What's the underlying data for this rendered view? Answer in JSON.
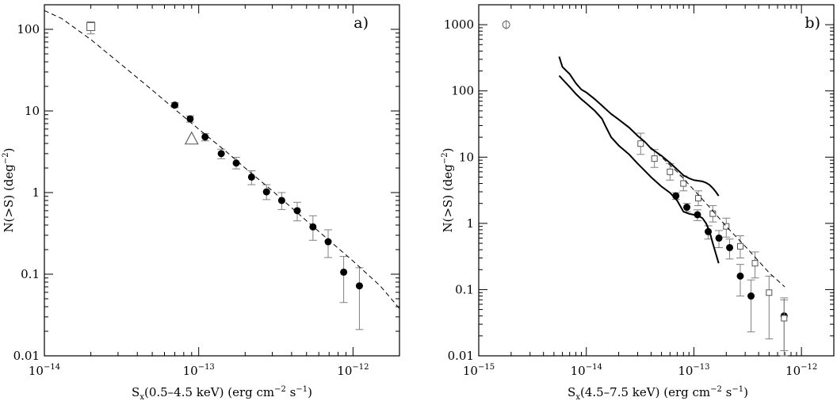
{
  "chart_data": [
    {
      "type": "scatter",
      "panel_label": "a)",
      "xscale": "log",
      "yscale": "log",
      "xlim": [
        1e-14,
        2e-12
      ],
      "ylim": [
        0.01,
        200
      ],
      "xlabel": {
        "main": "S",
        "sub": "x",
        "rest": "(0.5–4.5 keV) (erg cm",
        "e1": "−2",
        "mid": " s",
        "e2": "−1",
        "close": ")"
      },
      "ylabel": {
        "main": "N(>S) (deg",
        "sup": "−2",
        "close": ")"
      },
      "x_ticks": [
        {
          "value": 1e-14,
          "base": "10",
          "exp": "−14"
        },
        {
          "value": 1e-13,
          "base": "10",
          "exp": "−13"
        },
        {
          "value": 1e-12,
          "base": "10",
          "exp": "−12"
        }
      ],
      "y_ticks": [
        {
          "value": 0.01,
          "label": "0.01"
        },
        {
          "value": 0.1,
          "label": "0.1"
        },
        {
          "value": 1,
          "label": "1"
        },
        {
          "value": 10,
          "label": "10"
        },
        {
          "value": 100,
          "label": "100"
        }
      ],
      "series": [
        {
          "marker": "filled-circle",
          "points": [
            {
              "x": 7e-14,
              "y": 11.8,
              "lo": 11.0,
              "hi": 12.6
            },
            {
              "x": 8.8e-14,
              "y": 8.0,
              "lo": 7.3,
              "hi": 8.7
            },
            {
              "x": 1.1e-13,
              "y": 4.8,
              "lo": 4.3,
              "hi": 5.3
            },
            {
              "x": 1.4e-13,
              "y": 3.0,
              "lo": 2.6,
              "hi": 3.4
            },
            {
              "x": 1.75e-13,
              "y": 2.3,
              "lo": 1.95,
              "hi": 2.7
            },
            {
              "x": 2.2e-13,
              "y": 1.55,
              "lo": 1.25,
              "hi": 1.85
            },
            {
              "x": 2.75e-13,
              "y": 1.02,
              "lo": 0.82,
              "hi": 1.25
            },
            {
              "x": 3.45e-13,
              "y": 0.8,
              "lo": 0.62,
              "hi": 1.0
            },
            {
              "x": 4.35e-13,
              "y": 0.6,
              "lo": 0.45,
              "hi": 0.76
            },
            {
              "x": 5.5e-13,
              "y": 0.38,
              "lo": 0.26,
              "hi": 0.52
            },
            {
              "x": 6.9e-13,
              "y": 0.25,
              "lo": 0.16,
              "hi": 0.35
            },
            {
              "x": 8.7e-13,
              "y": 0.106,
              "lo": 0.045,
              "hi": 0.165
            },
            {
              "x": 1.1e-12,
              "y": 0.072,
              "lo": 0.021,
              "hi": 0.12
            }
          ]
        },
        {
          "marker": "open-square",
          "points": [
            {
              "x": 2e-14,
              "y": 108,
              "lo": 88,
              "hi": 124
            }
          ]
        },
        {
          "marker": "open-triangle",
          "points": [
            {
              "x": 9e-14,
              "y": 4.6
            }
          ]
        },
        {
          "line": "dashed",
          "points": [
            {
              "x": 1e-14,
              "y": 170
            },
            {
              "x": 1.3e-14,
              "y": 135
            },
            {
              "x": 2e-14,
              "y": 75
            },
            {
              "x": 3e-14,
              "y": 40
            },
            {
              "x": 5e-14,
              "y": 18
            },
            {
              "x": 7e-14,
              "y": 10.5
            },
            {
              "x": 1e-13,
              "y": 6
            },
            {
              "x": 1.5e-13,
              "y": 3.2
            },
            {
              "x": 2e-13,
              "y": 2.0
            },
            {
              "x": 3e-13,
              "y": 1.05
            },
            {
              "x": 5e-13,
              "y": 0.45
            },
            {
              "x": 7e-13,
              "y": 0.26
            },
            {
              "x": 1e-12,
              "y": 0.145
            },
            {
              "x": 1.5e-12,
              "y": 0.072
            },
            {
              "x": 2e-12,
              "y": 0.038
            }
          ]
        }
      ]
    },
    {
      "type": "scatter",
      "panel_label": "b)",
      "xscale": "log",
      "yscale": "log",
      "xlim": [
        1e-15,
        2e-12
      ],
      "ylim": [
        0.01,
        2000
      ],
      "xlabel": {
        "main": "S",
        "sub": "x",
        "rest": "(4.5–7.5 keV) (erg cm",
        "e1": "−2",
        "mid": " s",
        "e2": "−1",
        "close": ")"
      },
      "ylabel": {
        "main": "N(>S) (deg",
        "sup": "−2",
        "close": ")"
      },
      "x_ticks": [
        {
          "value": 1e-15,
          "base": "10",
          "exp": "−15"
        },
        {
          "value": 1e-14,
          "base": "10",
          "exp": "−14"
        },
        {
          "value": 1e-13,
          "base": "10",
          "exp": "−13"
        },
        {
          "value": 1e-12,
          "base": "10",
          "exp": "−12"
        }
      ],
      "y_ticks": [
        {
          "value": 0.01,
          "label": "0.01"
        },
        {
          "value": 0.1,
          "label": "0.1"
        },
        {
          "value": 1,
          "label": "1"
        },
        {
          "value": 10,
          "label": "10"
        },
        {
          "value": 100,
          "label": "100"
        },
        {
          "value": 1000,
          "label": "1000"
        }
      ],
      "series": [
        {
          "marker": "filled-circle",
          "points": [
            {
              "x": 6.8e-14,
              "y": 2.6,
              "lo": 2.3,
              "hi": 2.9
            },
            {
              "x": 8.6e-14,
              "y": 1.75,
              "lo": 1.5,
              "hi": 2.0
            },
            {
              "x": 1.08e-13,
              "y": 1.35,
              "lo": 1.1,
              "hi": 1.6
            },
            {
              "x": 1.36e-13,
              "y": 0.75,
              "lo": 0.58,
              "hi": 0.92
            },
            {
              "x": 1.71e-13,
              "y": 0.6,
              "lo": 0.43,
              "hi": 0.78
            },
            {
              "x": 2.15e-13,
              "y": 0.43,
              "lo": 0.29,
              "hi": 0.58
            },
            {
              "x": 2.7e-13,
              "y": 0.16,
              "lo": 0.08,
              "hi": 0.24
            },
            {
              "x": 3.4e-13,
              "y": 0.08,
              "lo": 0.023,
              "hi": 0.14
            },
            {
              "x": 6.9e-13,
              "y": 0.04,
              "lo": 0.01,
              "hi": 0.075
            }
          ]
        },
        {
          "marker": "open-square",
          "points": [
            {
              "x": 3.2e-14,
              "y": 16,
              "lo": 11,
              "hi": 23
            },
            {
              "x": 4.3e-14,
              "y": 9.5,
              "lo": 7,
              "hi": 13
            },
            {
              "x": 6e-14,
              "y": 6,
              "lo": 4.5,
              "hi": 8
            },
            {
              "x": 8e-14,
              "y": 4,
              "lo": 3.1,
              "hi": 5.2
            },
            {
              "x": 1.1e-13,
              "y": 2.4,
              "lo": 1.85,
              "hi": 3.1
            },
            {
              "x": 1.5e-13,
              "y": 1.4,
              "lo": 1.05,
              "hi": 1.85
            },
            {
              "x": 2e-13,
              "y": 0.9,
              "lo": 0.62,
              "hi": 1.2
            },
            {
              "x": 2.7e-13,
              "y": 0.45,
              "lo": 0.3,
              "hi": 0.65
            },
            {
              "x": 3.7e-13,
              "y": 0.25,
              "lo": 0.15,
              "hi": 0.37
            },
            {
              "x": 5e-13,
              "y": 0.09,
              "lo": 0.018,
              "hi": 0.16
            },
            {
              "x": 6.9e-13,
              "y": 0.037,
              "lo": 0.012,
              "hi": 0.07
            }
          ]
        },
        {
          "marker": "open-circle",
          "points": [
            {
              "x": 1.8e-15,
              "y": 1000
            }
          ]
        },
        {
          "line": "dashed",
          "points": [
            {
              "x": 4e-14,
              "y": 14
            },
            {
              "x": 5e-14,
              "y": 10
            },
            {
              "x": 7e-14,
              "y": 6
            },
            {
              "x": 1e-13,
              "y": 3.2
            },
            {
              "x": 1.5e-13,
              "y": 1.55
            },
            {
              "x": 2e-13,
              "y": 0.9
            },
            {
              "x": 3e-13,
              "y": 0.45
            },
            {
              "x": 5e-13,
              "y": 0.18
            },
            {
              "x": 7e-13,
              "y": 0.11
            }
          ]
        },
        {
          "line": "solid",
          "points": [
            {
              "x": 5.6e-15,
              "y": 330
            },
            {
              "x": 6e-15,
              "y": 230
            },
            {
              "x": 7e-15,
              "y": 180
            },
            {
              "x": 8e-15,
              "y": 130
            },
            {
              "x": 9e-15,
              "y": 105
            },
            {
              "x": 1e-14,
              "y": 95
            },
            {
              "x": 1.2e-14,
              "y": 75
            },
            {
              "x": 1.4e-14,
              "y": 60
            },
            {
              "x": 1.7e-14,
              "y": 45
            },
            {
              "x": 2e-14,
              "y": 37
            },
            {
              "x": 2.5e-14,
              "y": 28
            },
            {
              "x": 3e-14,
              "y": 21
            },
            {
              "x": 3.5e-14,
              "y": 17
            },
            {
              "x": 4e-14,
              "y": 13.5
            },
            {
              "x": 5e-14,
              "y": 10.5
            },
            {
              "x": 6e-14,
              "y": 8.2
            },
            {
              "x": 7e-14,
              "y": 6.5
            },
            {
              "x": 8e-14,
              "y": 5.3
            },
            {
              "x": 9e-14,
              "y": 4.8
            },
            {
              "x": 1e-13,
              "y": 4.5
            },
            {
              "x": 1.1e-13,
              "y": 4.4
            },
            {
              "x": 1.2e-13,
              "y": 4.3
            },
            {
              "x": 1.3e-13,
              "y": 4.1
            },
            {
              "x": 1.4e-13,
              "y": 3.8
            },
            {
              "x": 1.5e-13,
              "y": 3.4
            },
            {
              "x": 1.6e-13,
              "y": 3.0
            },
            {
              "x": 1.7e-13,
              "y": 2.6
            }
          ]
        },
        {
          "line": "solid",
          "points": [
            {
              "x": 5.6e-15,
              "y": 170
            },
            {
              "x": 6e-15,
              "y": 150
            },
            {
              "x": 7e-15,
              "y": 115
            },
            {
              "x": 8e-15,
              "y": 90
            },
            {
              "x": 9e-15,
              "y": 75
            },
            {
              "x": 1e-14,
              "y": 65
            },
            {
              "x": 1.2e-14,
              "y": 50
            },
            {
              "x": 1.4e-14,
              "y": 38
            },
            {
              "x": 1.5e-14,
              "y": 30
            },
            {
              "x": 1.7e-14,
              "y": 20
            },
            {
              "x": 2e-14,
              "y": 15
            },
            {
              "x": 2.5e-14,
              "y": 11
            },
            {
              "x": 3e-14,
              "y": 8
            },
            {
              "x": 3.5e-14,
              "y": 6.2
            },
            {
              "x": 4e-14,
              "y": 5
            },
            {
              "x": 5e-14,
              "y": 3.6
            },
            {
              "x": 6e-14,
              "y": 2.9
            },
            {
              "x": 7e-14,
              "y": 2.2
            },
            {
              "x": 8e-14,
              "y": 1.5
            },
            {
              "x": 9e-14,
              "y": 1.4
            },
            {
              "x": 1e-13,
              "y": 1.35
            },
            {
              "x": 1.1e-13,
              "y": 1.3
            },
            {
              "x": 1.2e-13,
              "y": 1.2
            },
            {
              "x": 1.3e-13,
              "y": 1.0
            },
            {
              "x": 1.4e-13,
              "y": 0.75
            },
            {
              "x": 1.5e-13,
              "y": 0.5
            },
            {
              "x": 1.6e-13,
              "y": 0.35
            },
            {
              "x": 1.7e-13,
              "y": 0.25
            }
          ]
        }
      ]
    }
  ]
}
